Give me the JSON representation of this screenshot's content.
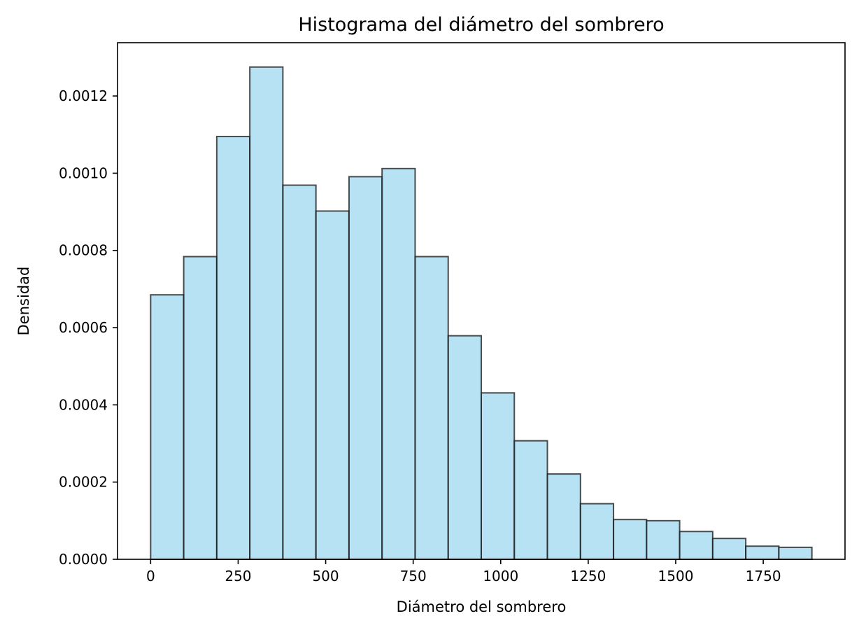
{
  "chart_data": {
    "type": "bar",
    "title": "Histograma del diámetro del sombrero",
    "xlabel": "Diámetro del sombrero",
    "ylabel": "Densidad",
    "xlim": [
      -94.6,
      1983.6
    ],
    "ylim": [
      0,
      0.001338
    ],
    "xticks": [
      {
        "value": 0,
        "label": "0"
      },
      {
        "value": 250,
        "label": "250"
      },
      {
        "value": 500,
        "label": "500"
      },
      {
        "value": 750,
        "label": "750"
      },
      {
        "value": 1000,
        "label": "1000"
      },
      {
        "value": 1250,
        "label": "1250"
      },
      {
        "value": 1500,
        "label": "1500"
      },
      {
        "value": 1750,
        "label": "1750"
      }
    ],
    "yticks": [
      {
        "value": 0,
        "label": "0.0000"
      },
      {
        "value": 0.0002,
        "label": "0.0002"
      },
      {
        "value": 0.0004,
        "label": "0.0004"
      },
      {
        "value": 0.0006,
        "label": "0.0006"
      },
      {
        "value": 0.0008,
        "label": "0.0008"
      },
      {
        "value": 0.001,
        "label": "0.0010"
      },
      {
        "value": 0.0012,
        "label": "0.0012"
      }
    ],
    "bin_edges": [
      0,
      94.45,
      188.9,
      283.35,
      377.8,
      472.25,
      566.7,
      661.15,
      755.6,
      850.05,
      944.5,
      1038.95,
      1133.4,
      1227.85,
      1322.3,
      1416.75,
      1511.2,
      1605.65,
      1700.1,
      1794.55,
      1889
    ],
    "values": [
      0.000685,
      0.000784,
      0.001095,
      0.001275,
      0.000969,
      0.000902,
      0.000991,
      0.001012,
      0.000784,
      0.000579,
      0.000431,
      0.000307,
      0.000221,
      0.000144,
      0.000103,
      0.0001,
      7.2e-05,
      5.4e-05,
      3.4e-05,
      3.1e-05
    ],
    "bar_color": "#87ceeb",
    "bar_opacity": 0.6,
    "edge_color": "#000000",
    "grid": false,
    "legend": "none"
  }
}
